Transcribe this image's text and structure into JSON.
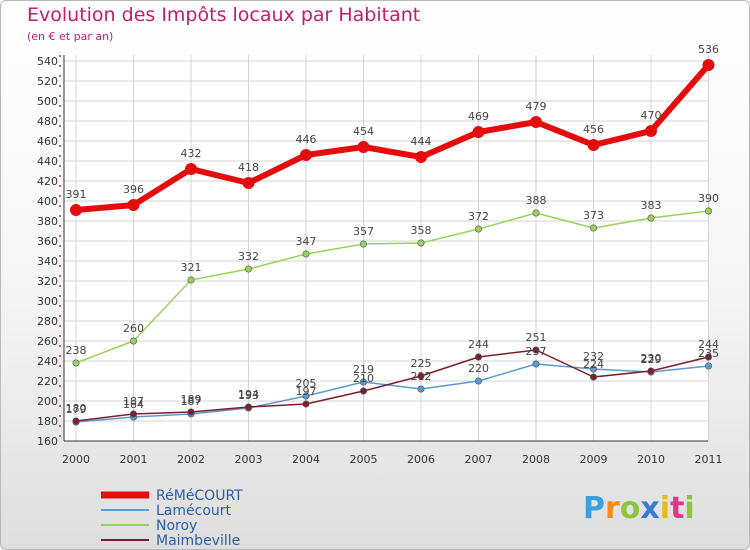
{
  "colors": {
    "title": "#c11d6e",
    "legend_text": "#2c5da8",
    "grid": "#d4d4d4",
    "axis_marker": "#c11d6e"
  },
  "chart_data": {
    "type": "line",
    "title": "Evolution des Impôts locaux par Habitant",
    "subtitle": "(en € et par an)",
    "xlabel": "",
    "ylabel": "",
    "x": [
      "2000",
      "2001",
      "2002",
      "2003",
      "2004",
      "2005",
      "2006",
      "2007",
      "2008",
      "2009",
      "2010",
      "2011"
    ],
    "ylim": [
      160,
      540
    ],
    "yticks": [
      160,
      180,
      200,
      220,
      240,
      260,
      280,
      300,
      320,
      340,
      360,
      380,
      400,
      420,
      440,
      460,
      480,
      500,
      520,
      540
    ],
    "grid": true,
    "legend_position": "bottom-left",
    "series": [
      {
        "name": "RéMéCOURT",
        "color": "#e40d0d",
        "width": 6,
        "marker_r": 6,
        "labels": true,
        "values": [
          391,
          396,
          432,
          418,
          446,
          454,
          444,
          469,
          479,
          456,
          470,
          536
        ]
      },
      {
        "name": "Lamécourt",
        "color": "#5b9bd1",
        "width": 1.5,
        "marker_r": 3.2,
        "labels": true,
        "values": [
          179,
          184,
          187,
          193,
          205,
          219,
          212,
          220,
          237,
          232,
          229,
          235
        ]
      },
      {
        "name": "Noroy",
        "color": "#97d35a",
        "width": 1.5,
        "marker_r": 3.2,
        "labels": true,
        "values": [
          238,
          260,
          321,
          332,
          347,
          357,
          358,
          372,
          388,
          373,
          383,
          390
        ]
      },
      {
        "name": "Maimbeville",
        "color": "#7a1f2b",
        "width": 1.5,
        "marker_r": 3.2,
        "labels": true,
        "values": [
          180,
          187,
          189,
          194,
          197,
          210,
          225,
          244,
          251,
          224,
          230,
          244
        ]
      }
    ]
  },
  "logo": {
    "letters": [
      "P",
      "r",
      "o",
      "x",
      "i",
      "t",
      "i"
    ],
    "colors": [
      "#3aa0e0",
      "#f08a1c",
      "#8cc63f",
      "#3a7bd5",
      "#e8b91a",
      "#d93a8c",
      "#8cc63f"
    ]
  }
}
